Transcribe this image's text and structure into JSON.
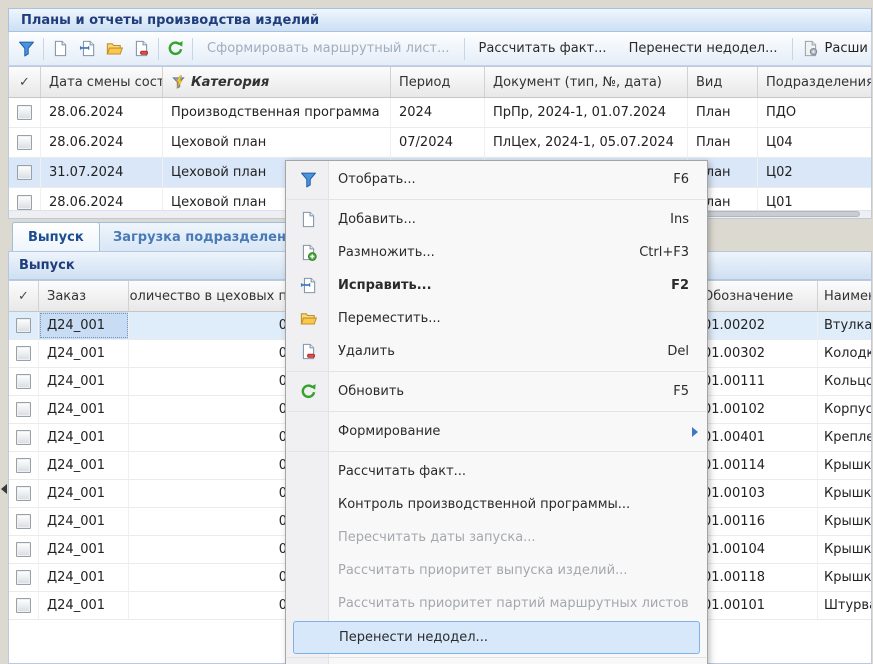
{
  "window": {
    "title": "Планы и отчеты производства изделий"
  },
  "icons": {
    "category_header": "filter-lightning",
    "extended_button": "page-gear"
  },
  "toolbar": {
    "icon_groups": [
      [
        {
          "name": "filter",
          "icon": "funnel"
        }
      ],
      [
        {
          "name": "add",
          "icon": "page"
        },
        {
          "name": "edit",
          "icon": "page-edit"
        },
        {
          "name": "move",
          "icon": "folder"
        },
        {
          "name": "delete",
          "icon": "page-minus"
        }
      ],
      [
        {
          "name": "refresh",
          "icon": "refresh"
        }
      ]
    ],
    "generate_route_sheet": "Сформировать маршрутный лист...",
    "calc_fact": "Рассчитать факт...",
    "carry_over": "Перенести недодел...",
    "extended": "Расширен"
  },
  "top_grid": {
    "columns": {
      "check": "✓",
      "date": "Дата смены сост",
      "category": "Категория",
      "period": "Период",
      "document": "Документ (тип, №, дата)",
      "kind": "Вид",
      "division": "Подразделения"
    },
    "rows": [
      {
        "date": "28.06.2024",
        "category": "Производственная программа",
        "period": "2024",
        "document": "ПрПр, 2024-1, 01.07.2024",
        "kind": "План",
        "division": "ПДО",
        "selected": false
      },
      {
        "date": "28.06.2024",
        "category": "Цеховой план",
        "period": "07/2024",
        "document": "ПлЦех, 2024-1, 05.07.2024",
        "kind": "План",
        "division": "Ц04",
        "selected": false
      },
      {
        "date": "31.07.2024",
        "category": "Цеховой план",
        "period": "",
        "document": "",
        "kind": "План",
        "division": "Ц02",
        "selected": true
      },
      {
        "date": "28.06.2024",
        "category": "Цеховой план",
        "period": "",
        "document": "",
        "kind": "План",
        "division": "Ц01",
        "selected": false
      }
    ]
  },
  "tabs": [
    {
      "label": "Выпуск",
      "active": true
    },
    {
      "label": "Загрузка подразделений",
      "active": false
    }
  ],
  "section_title": "Выпуск",
  "bottom_grid": {
    "columns": {
      "check": "✓",
      "order": "Заказ",
      "qty": "Количество в цеховых п",
      "code": "Обозначение",
      "name": "Наимен"
    },
    "rows": [
      {
        "order": "Д24_001",
        "qty": "0",
        "code": "01.00202",
        "name": "Втулка",
        "selected": true
      },
      {
        "order": "Д24_001",
        "qty": "0",
        "code": "01.00302",
        "name": "Колодк",
        "selected": false
      },
      {
        "order": "Д24_001",
        "qty": "0",
        "code": "01.00111",
        "name": "Кольцо",
        "selected": false
      },
      {
        "order": "Д24_001",
        "qty": "0",
        "code": "01.00102",
        "name": "Корпус",
        "selected": false
      },
      {
        "order": "Д24_001",
        "qty": "0",
        "code": "01.00401",
        "name": "Крепле",
        "selected": false
      },
      {
        "order": "Д24_001",
        "qty": "0",
        "code": "01.00114",
        "name": "Крышка",
        "selected": false
      },
      {
        "order": "Д24_001",
        "qty": "0",
        "code": "01.00103",
        "name": "Крышка",
        "selected": false
      },
      {
        "order": "Д24_001",
        "qty": "0",
        "code": "01.00116",
        "name": "Крышка",
        "selected": false
      },
      {
        "order": "Д24_001",
        "qty": "0",
        "code": "01.00104",
        "name": "Крышка",
        "selected": false
      },
      {
        "order": "Д24_001",
        "qty": "0",
        "code": "01.00118",
        "name": "Крышка",
        "selected": false
      },
      {
        "order": "Д24_001",
        "qty": "0",
        "code": "01.00101",
        "name": "Штурва",
        "selected": false
      }
    ]
  },
  "context_menu": {
    "items": [
      {
        "name": "filter",
        "label": "Отобрать...",
        "shortcut": "F6",
        "icon": "funnel"
      },
      {
        "type": "separator"
      },
      {
        "name": "add",
        "label": "Добавить...",
        "shortcut": "Ins",
        "icon": "page"
      },
      {
        "name": "duplicate",
        "label": "Размножить...",
        "shortcut": "Ctrl+F3",
        "icon": "page-plus"
      },
      {
        "name": "edit",
        "label": "Исправить...",
        "shortcut": "F2",
        "icon": "page-edit",
        "bold": true
      },
      {
        "name": "move",
        "label": "Переместить...",
        "icon": "folder"
      },
      {
        "name": "delete",
        "label": "Удалить",
        "shortcut": "Del",
        "icon": "page-minus"
      },
      {
        "type": "separator"
      },
      {
        "name": "refresh",
        "label": "Обновить",
        "shortcut": "F5",
        "icon": "refresh"
      },
      {
        "type": "separator"
      },
      {
        "name": "formation",
        "label": "Формирование",
        "submenu": true
      },
      {
        "type": "separator"
      },
      {
        "name": "calc-fact",
        "label": "Рассчитать факт..."
      },
      {
        "name": "control-production-program",
        "label": "Контроль производственной программы..."
      },
      {
        "name": "recalc-launch-dates",
        "label": "Пересчитать даты запуска...",
        "disabled": true
      },
      {
        "name": "calc-priority-products",
        "label": "Рассчитать приоритет выпуска изделий...",
        "disabled": true
      },
      {
        "name": "calc-priority-route-sheets",
        "label": "Рассчитать приоритет партий маршрутных листов...",
        "disabled": true
      },
      {
        "name": "carry-over",
        "label": "Перенести недодел...",
        "highlighted": true
      },
      {
        "type": "separator"
      }
    ]
  },
  "colors": {
    "title_text": "#1f3d7b",
    "selection_row": "#d9e7f8",
    "menu_highlight": "#d7e8fb",
    "menu_highlight_border": "#7fb2e8"
  }
}
